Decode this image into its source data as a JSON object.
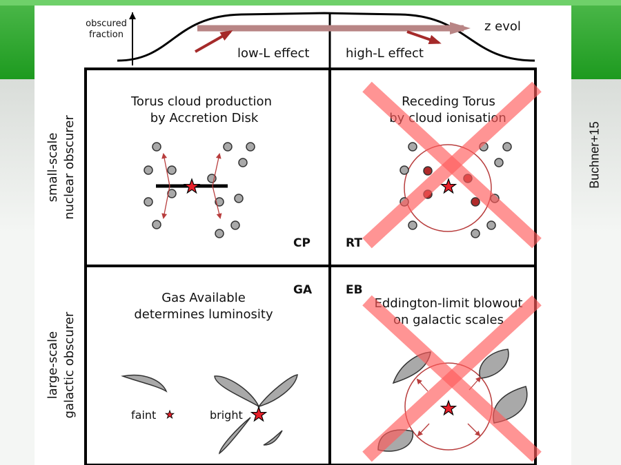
{
  "top_strip": {
    "y_axis_label_line1": "obscured",
    "y_axis_label_line2": "fraction",
    "arrow_label": "z evol",
    "left_effect": "low-L effect",
    "right_effect": "high-L effect"
  },
  "row_labels": {
    "top_line1": "small-scale",
    "top_line2": "nuclear obscurer",
    "bottom_line1": "large-scale",
    "bottom_line2": "galactic obscurer"
  },
  "quadrants": {
    "cp": {
      "title_line1": "Torus cloud production",
      "title_line2": "by Accretion Disk",
      "code": "CP"
    },
    "rt": {
      "title_line1": "Receding Torus",
      "title_line2": "by cloud ionisation",
      "code": "RT"
    },
    "ga": {
      "title_line1": "Gas Available",
      "title_line2": "determines luminosity",
      "code": "GA",
      "faint_label": "faint",
      "bright_label": "bright"
    },
    "eb": {
      "title_line1": "Eddington-limit blowout",
      "title_line2": "on galactic scales",
      "code": "EB"
    }
  },
  "citation": "Buchner+15",
  "colors": {
    "star": "#e8202a",
    "cross": "#ff5a5a",
    "arrow": "#b83d3d",
    "cloud": "#a9a9a9"
  }
}
